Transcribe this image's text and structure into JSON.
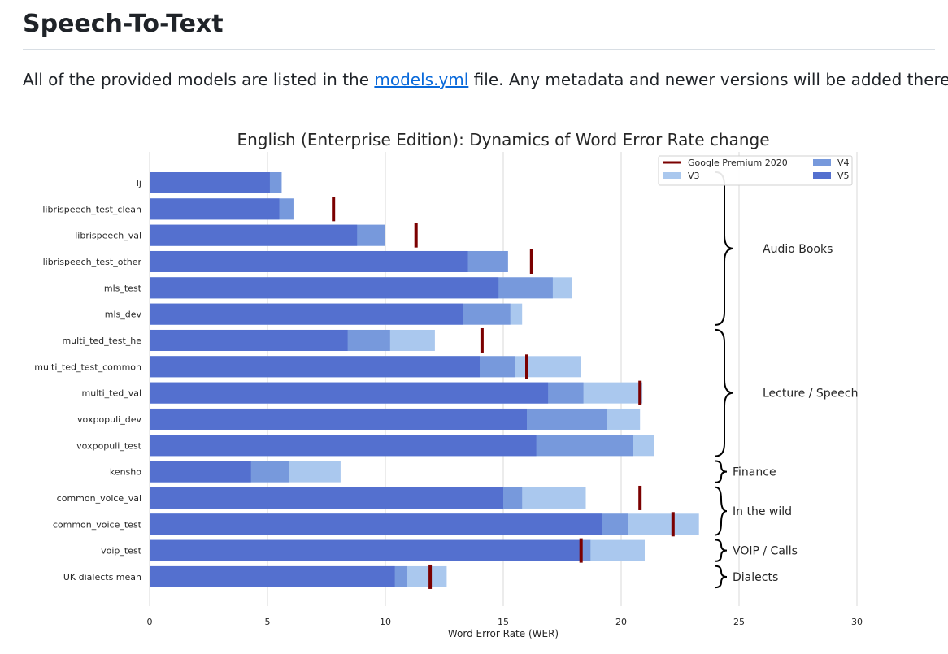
{
  "page": {
    "heading": "Speech-To-Text",
    "intro_before": "All of the provided models are listed in the ",
    "intro_link": "models.yml",
    "intro_after": " file. Any metadata and newer versions will be added there."
  },
  "colors": {
    "v5": "#5470cf",
    "v4": "#7799dc",
    "v3": "#aac8ee",
    "google": "#7b0000",
    "grid": "#d9d9d9",
    "text": "#262626"
  },
  "chart_data": {
    "type": "bar",
    "orientation": "horizontal",
    "title": "English (Enterprise Edition): Dynamics of Word Error Rate change",
    "xlabel": "Word Error Rate (WER)",
    "ylabel": "",
    "xlim": [
      0,
      30
    ],
    "xticks": [
      0,
      5,
      10,
      15,
      20,
      25,
      30
    ],
    "grid": true,
    "legend_position": "top-right",
    "categories": [
      "lj",
      "librispeech_test_clean",
      "librispeech_val",
      "librispeech_test_other",
      "mls_test",
      "mls_dev",
      "multi_ted_test_he",
      "multi_ted_test_common",
      "multi_ted_val",
      "voxpopuli_dev",
      "voxpopuli_test",
      "kensho",
      "common_voice_val",
      "common_voice_test",
      "voip_test",
      "UK dialects mean"
    ],
    "series": [
      {
        "name": "V3",
        "kind": "bar",
        "color_key": "v3",
        "values": [
          5.6,
          6.1,
          10.0,
          15.2,
          17.9,
          15.8,
          12.1,
          18.3,
          20.9,
          20.8,
          21.4,
          8.1,
          18.5,
          23.3,
          21.0,
          12.6
        ]
      },
      {
        "name": "V4",
        "kind": "bar",
        "color_key": "v4",
        "values": [
          5.6,
          6.1,
          10.0,
          15.2,
          17.1,
          15.3,
          10.2,
          15.5,
          18.4,
          19.4,
          20.5,
          5.9,
          15.8,
          20.3,
          18.7,
          10.9
        ]
      },
      {
        "name": "V5",
        "kind": "bar",
        "color_key": "v5",
        "values": [
          5.1,
          5.5,
          8.8,
          13.5,
          14.8,
          13.3,
          8.4,
          14.0,
          16.9,
          16.0,
          16.4,
          4.3,
          15.0,
          19.2,
          18.3,
          10.4
        ]
      },
      {
        "name": "Google Premium 2020",
        "kind": "marker",
        "color_key": "google",
        "values": [
          null,
          7.8,
          11.3,
          16.2,
          null,
          null,
          14.1,
          16.0,
          20.8,
          null,
          null,
          null,
          20.8,
          22.2,
          18.3,
          11.9
        ]
      }
    ],
    "legend": [
      {
        "label": "Google Premium 2020",
        "color_key": "google",
        "kind": "line"
      },
      {
        "label": "V4",
        "color_key": "v4",
        "kind": "patch"
      },
      {
        "label": "V3",
        "color_key": "v3",
        "kind": "patch"
      },
      {
        "label": "V5",
        "color_key": "v5",
        "kind": "patch"
      }
    ],
    "groups": [
      {
        "label": "Audio Books",
        "from": 0,
        "to": 5
      },
      {
        "label": "Lecture / Speech",
        "from": 6,
        "to": 10
      },
      {
        "label": "Finance",
        "from": 11,
        "to": 11
      },
      {
        "label": "In the wild",
        "from": 12,
        "to": 13
      },
      {
        "label": "VOIP / Calls",
        "from": 14,
        "to": 14
      },
      {
        "label": "Dialects",
        "from": 15,
        "to": 15
      }
    ]
  }
}
